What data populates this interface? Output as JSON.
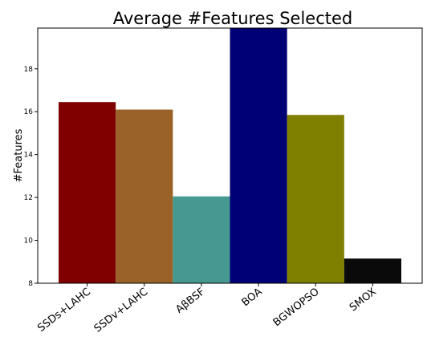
{
  "chart_data": {
    "type": "bar",
    "title": "Average #Features Selected",
    "xlabel": "",
    "ylabel": "#Features",
    "categories": [
      "SSDs+LAHC",
      "SSDv+LAHC",
      "AβBSF",
      "BOA",
      "BGWOPSO",
      "SMOX"
    ],
    "values": [
      16.45,
      16.1,
      12.05,
      20.0,
      15.85,
      9.15
    ],
    "colors": [
      "#800000",
      "#9a6228",
      "#469990",
      "#000075",
      "#808000",
      "#0a0a0a"
    ],
    "ylim": [
      8,
      19.9
    ],
    "yticks": [
      8,
      10,
      12,
      14,
      16,
      18
    ],
    "grid": false,
    "legend": "none"
  }
}
